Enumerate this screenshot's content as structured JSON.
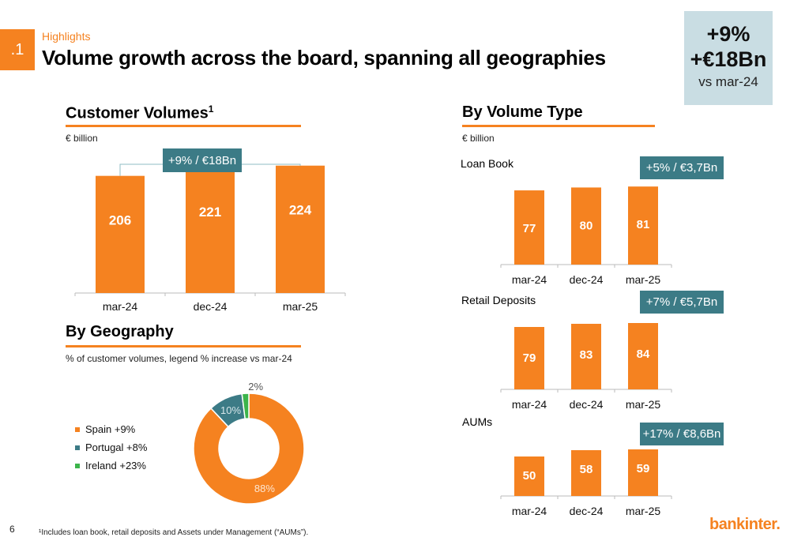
{
  "header": {
    "section_number": ".1",
    "kicker": "Highlights",
    "title": "Volume growth across the board, spanning all geographies"
  },
  "kpi": {
    "line1": "+9%",
    "line2": "+€18Bn",
    "line3": "vs mar-24"
  },
  "customer_volumes": {
    "title": "Customer Volumes",
    "title_sup": "1",
    "unit": "€ billion",
    "badge": "+9% / €18Bn"
  },
  "by_volume_type": {
    "title": "By Volume Type",
    "unit": "€ billion",
    "loan_book": {
      "label": "Loan Book",
      "badge": "+5% / €3,7Bn"
    },
    "retail_deposits": {
      "label": "Retail Deposits",
      "badge": "+7% / €5,7Bn"
    },
    "aums": {
      "label": "AUMs",
      "badge": "+17% / €8,6Bn"
    }
  },
  "by_geography": {
    "title": "By Geography",
    "subtitle": "% of customer volumes, legend % increase vs mar-24",
    "legend": [
      {
        "label": "Spain +9%",
        "color": "#f58220"
      },
      {
        "label": "Portugal +8%",
        "color": "#3c7b86"
      },
      {
        "label": "Ireland +23%",
        "color": "#3cb44b"
      }
    ]
  },
  "chart_data": [
    {
      "id": "customer_volumes",
      "type": "bar",
      "categories": [
        "mar-24",
        "dec-24",
        "mar-25"
      ],
      "values": [
        206,
        221,
        224
      ],
      "color": "#f58220"
    },
    {
      "id": "loan_book",
      "type": "bar",
      "categories": [
        "mar-24",
        "dec-24",
        "mar-25"
      ],
      "values": [
        77,
        80,
        81
      ],
      "color": "#f58220"
    },
    {
      "id": "retail_deposits",
      "type": "bar",
      "categories": [
        "mar-24",
        "dec-24",
        "mar-25"
      ],
      "values": [
        79,
        83,
        84
      ],
      "color": "#f58220"
    },
    {
      "id": "aums",
      "type": "bar",
      "categories": [
        "mar-24",
        "dec-24",
        "mar-25"
      ],
      "values": [
        50,
        58,
        59
      ],
      "color": "#f58220"
    },
    {
      "id": "geography",
      "type": "pie",
      "slices": [
        {
          "name": "Spain",
          "value": 88,
          "label": "88%",
          "color": "#f58220"
        },
        {
          "name": "Portugal",
          "value": 10,
          "label": "10%",
          "color": "#3c7b86"
        },
        {
          "name": "Ireland",
          "value": 2,
          "label": "2%",
          "color": "#3cb44b"
        }
      ]
    }
  ],
  "footer": {
    "page_number": "6",
    "footnote": "¹Includes loan book, retail deposits and  Assets under Management (“AUMs”).",
    "logo": "bankinter."
  }
}
